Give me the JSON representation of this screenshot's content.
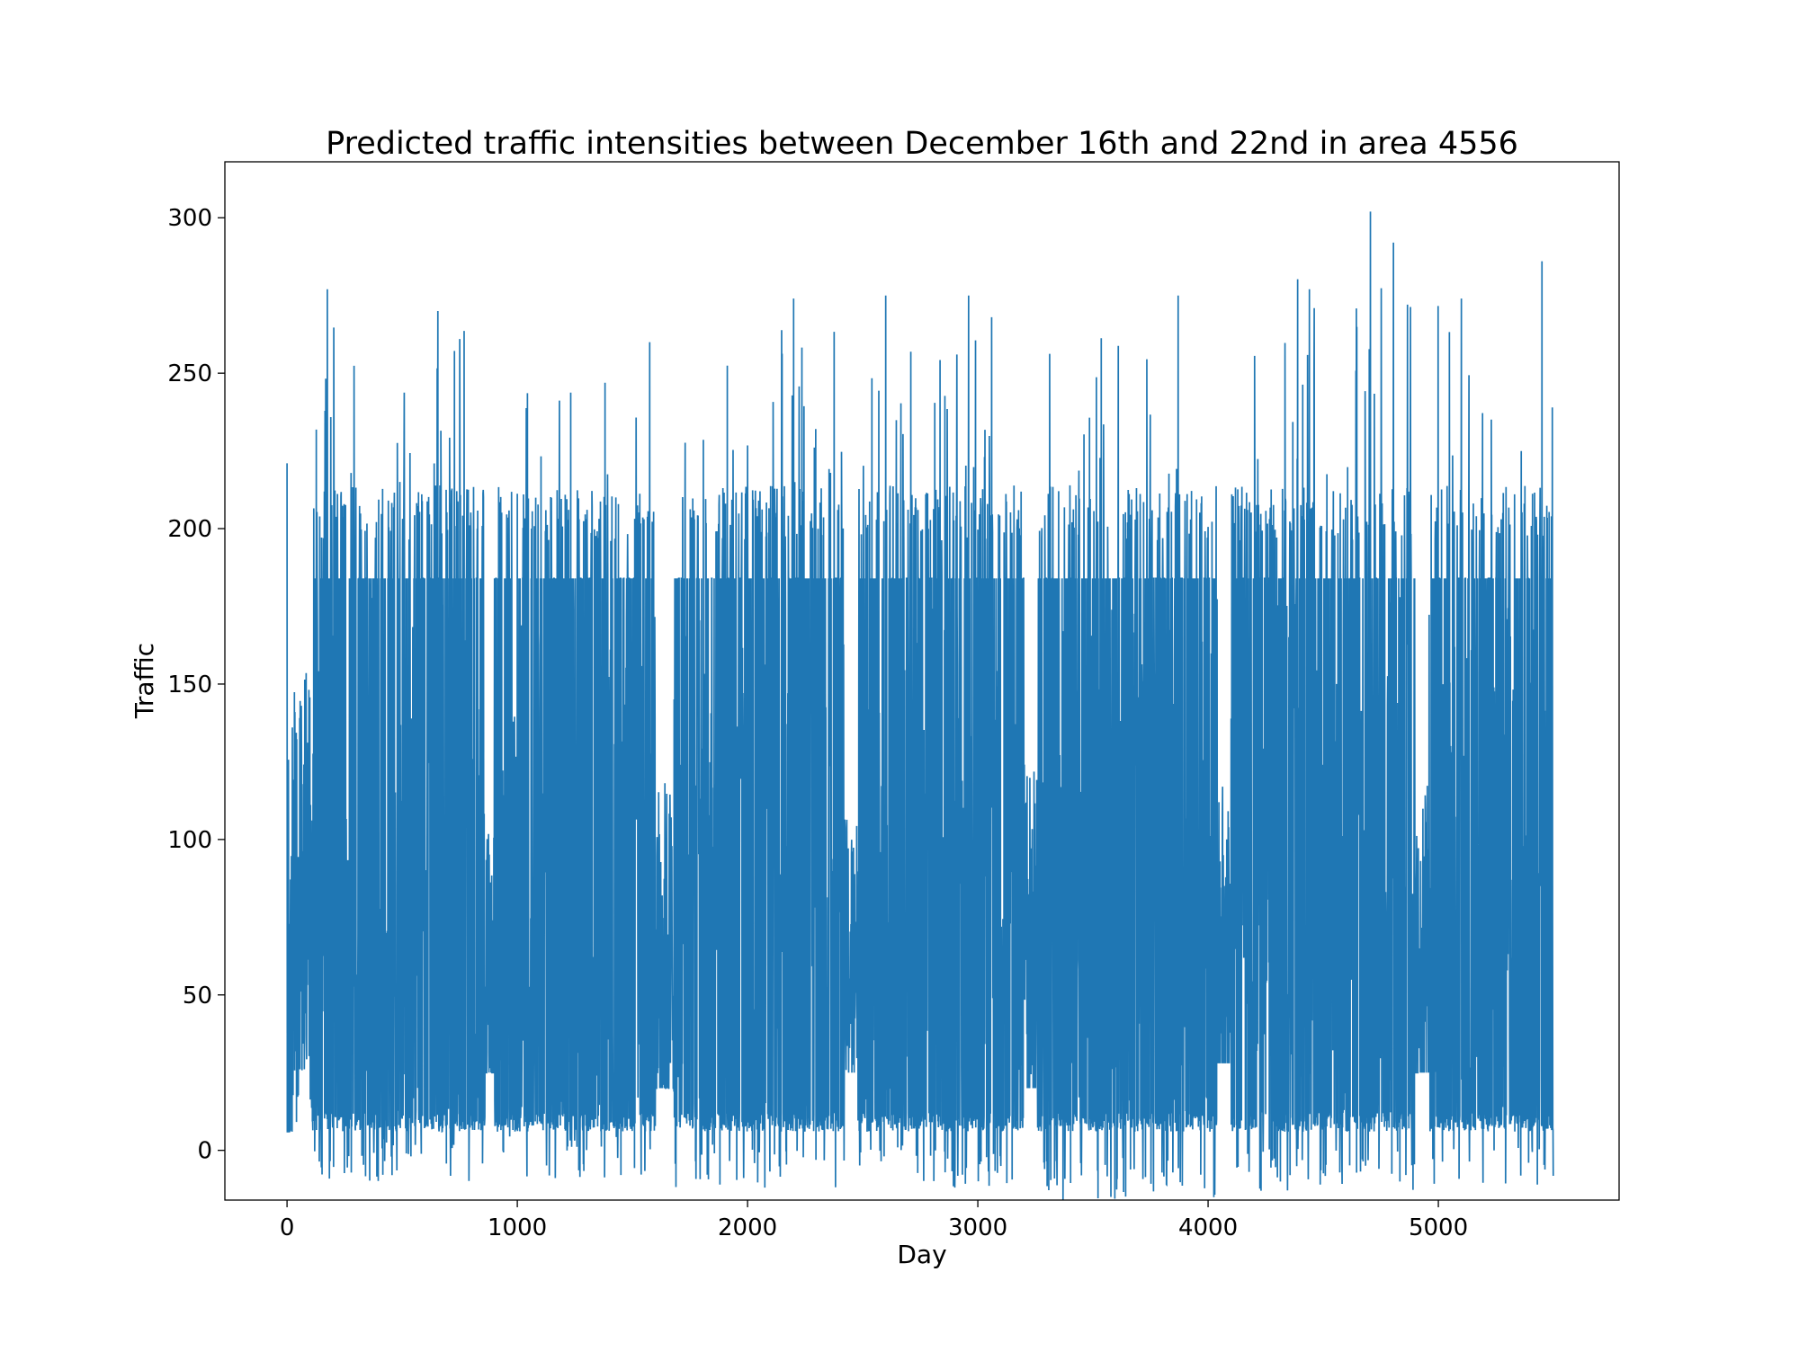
{
  "chart_data": {
    "type": "line",
    "title": "Predicted traffic intensities between December 16th and 22nd in area 4556",
    "xlabel": "Day",
    "ylabel": "Traffic",
    "xlim": [
      -270,
      5785
    ],
    "ylim": [
      -16,
      318
    ],
    "xticks": [
      0,
      1000,
      2000,
      3000,
      4000,
      5000
    ],
    "yticks": [
      0,
      50,
      100,
      150,
      200,
      250,
      300
    ],
    "grid": false,
    "legend": "none",
    "series": [
      {
        "color": "#1f77b4",
        "points": 5500,
        "plateau": 184,
        "segments": [
          {
            "start": 0,
            "end": 30,
            "lo": 6,
            "hi": 221,
            "base": 40
          },
          {
            "start": 30,
            "end": 110,
            "lo": 6,
            "hi": 170,
            "base": 80
          },
          {
            "start": 110,
            "end": 860,
            "lo": -10,
            "hi": 277,
            "base": 110
          },
          {
            "start": 860,
            "end": 900,
            "lo": 25,
            "hi": 150,
            "base": 60
          },
          {
            "start": 900,
            "end": 1600,
            "lo": -9,
            "hi": 260,
            "base": 110
          },
          {
            "start": 1600,
            "end": 1680,
            "lo": 20,
            "hi": 155,
            "base": 60
          },
          {
            "start": 1680,
            "end": 2420,
            "lo": -12,
            "hi": 274,
            "base": 110
          },
          {
            "start": 2420,
            "end": 2480,
            "lo": 25,
            "hi": 130,
            "base": 60
          },
          {
            "start": 2480,
            "end": 3200,
            "lo": -12,
            "hi": 275,
            "base": 110
          },
          {
            "start": 3200,
            "end": 3260,
            "lo": 20,
            "hi": 165,
            "base": 60
          },
          {
            "start": 3260,
            "end": 4040,
            "lo": -16,
            "hi": 275,
            "base": 110
          },
          {
            "start": 4040,
            "end": 4100,
            "lo": 28,
            "hi": 160,
            "base": 60
          },
          {
            "start": 4100,
            "end": 4900,
            "lo": -13,
            "hi": 302,
            "base": 110
          },
          {
            "start": 4900,
            "end": 4960,
            "lo": 25,
            "hi": 155,
            "base": 60
          },
          {
            "start": 4960,
            "end": 5500,
            "lo": -11,
            "hi": 286,
            "base": 110
          }
        ],
        "peaks": [
          {
            "x": 0,
            "y": 221
          },
          {
            "x": 175,
            "y": 277
          },
          {
            "x": 655,
            "y": 270
          },
          {
            "x": 750,
            "y": 261
          },
          {
            "x": 1575,
            "y": 260
          },
          {
            "x": 2200,
            "y": 274
          },
          {
            "x": 2600,
            "y": 275
          },
          {
            "x": 2960,
            "y": 275
          },
          {
            "x": 3060,
            "y": 268
          },
          {
            "x": 3870,
            "y": 275
          },
          {
            "x": 4440,
            "y": 277
          },
          {
            "x": 4705,
            "y": 302
          },
          {
            "x": 4805,
            "y": 292
          },
          {
            "x": 5100,
            "y": 274
          },
          {
            "x": 5450,
            "y": 286
          },
          {
            "x": 5495,
            "y": 239
          }
        ],
        "troughs": [
          {
            "x": 1880,
            "y": -11
          },
          {
            "x": 2075,
            "y": -12
          },
          {
            "x": 2900,
            "y": -12
          },
          {
            "x": 3370,
            "y": -16
          },
          {
            "x": 4230,
            "y": -13
          },
          {
            "x": 5430,
            "y": -11
          }
        ]
      }
    ]
  }
}
